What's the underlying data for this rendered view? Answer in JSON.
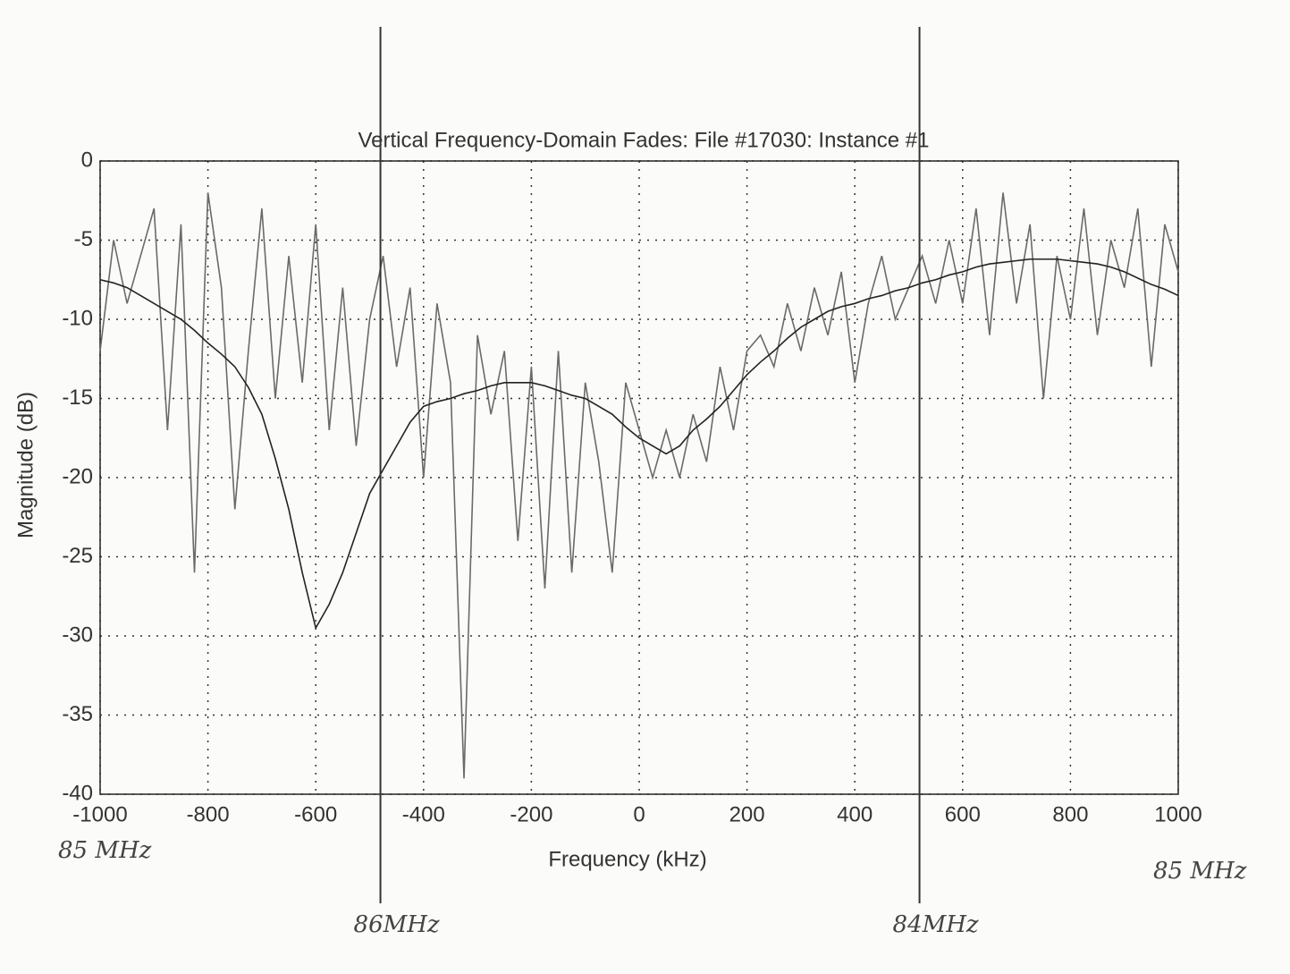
{
  "chart_data": {
    "type": "line",
    "title": "Vertical Frequency-Domain Fades:  File #17030:  Instance #1",
    "xlabel": "Frequency (kHz)",
    "ylabel": "Magnitude (dB)",
    "x": [
      -1000,
      -975,
      -950,
      -925,
      -900,
      -875,
      -850,
      -825,
      -800,
      -775,
      -750,
      -725,
      -700,
      -675,
      -650,
      -625,
      -600,
      -575,
      -550,
      -525,
      -500,
      -475,
      -450,
      -425,
      -400,
      -375,
      -350,
      -325,
      -300,
      -275,
      -250,
      -225,
      -200,
      -175,
      -150,
      -125,
      -100,
      -75,
      -50,
      -25,
      0,
      25,
      50,
      75,
      100,
      125,
      150,
      175,
      200,
      225,
      250,
      275,
      300,
      325,
      350,
      375,
      400,
      425,
      450,
      475,
      500,
      525,
      550,
      575,
      600,
      625,
      650,
      675,
      700,
      725,
      750,
      775,
      800,
      825,
      850,
      875,
      900,
      925,
      950,
      975,
      1000
    ],
    "series": [
      {
        "color": "#6a6a6a",
        "values": [
          -12,
          -5,
          -9,
          -6,
          -3,
          -17,
          -4,
          -26,
          -2,
          -8,
          -22,
          -12,
          -3,
          -15,
          -6,
          -14,
          -4,
          -17,
          -8,
          -18,
          -10,
          -6,
          -13,
          -8,
          -20,
          -9,
          -14,
          -39,
          -11,
          -16,
          -12,
          -24,
          -13,
          -27,
          -12,
          -26,
          -14,
          -19,
          -26,
          -14,
          -17,
          -20,
          -17,
          -20,
          -16,
          -19,
          -13,
          -17,
          -12,
          -11,
          -13,
          -9,
          -12,
          -8,
          -11,
          -7,
          -14,
          -9,
          -6,
          -10,
          -8,
          -6,
          -9,
          -5,
          -9,
          -3,
          -11,
          -2,
          -9,
          -4,
          -15,
          -6,
          -10,
          -3,
          -11,
          -5,
          -8,
          -3,
          -13,
          -4,
          -7
        ]
      },
      {
        "color": "#222222",
        "values": [
          -7.5,
          -7.7,
          -8,
          -8.5,
          -9,
          -9.5,
          -10,
          -10.7,
          -11.5,
          -12.2,
          -13,
          -14.3,
          -16,
          -18.8,
          -22,
          -26,
          -29.5,
          -28,
          -26,
          -23.5,
          -21,
          -19.5,
          -18,
          -16.5,
          -15.5,
          -15.2,
          -15,
          -14.7,
          -14.5,
          -14.2,
          -14,
          -14,
          -14,
          -14.2,
          -14.5,
          -14.8,
          -15,
          -15.5,
          -16,
          -16.8,
          -17.5,
          -18,
          -18.5,
          -18,
          -17,
          -16.3,
          -15.5,
          -14.5,
          -13.5,
          -12.7,
          -12,
          -11.2,
          -10.5,
          -10,
          -9.5,
          -9.2,
          -9,
          -8.7,
          -8.5,
          -8.2,
          -8,
          -7.7,
          -7.5,
          -7.2,
          -7,
          -6.7,
          -6.5,
          -6.4,
          -6.3,
          -6.2,
          -6.2,
          -6.2,
          -6.3,
          -6.4,
          -6.5,
          -6.7,
          -7,
          -7.4,
          -7.8,
          -8.1,
          -8.5
        ]
      }
    ],
    "xlim": [
      -1000,
      1000
    ],
    "ylim": [
      -40,
      0
    ],
    "xticks": [
      -1000,
      -800,
      -600,
      -400,
      -200,
      0,
      200,
      400,
      600,
      800,
      1000
    ],
    "yticks": [
      0,
      -5,
      -10,
      -15,
      -20,
      -25,
      -30,
      -35,
      -40
    ],
    "grid": true,
    "left_note": "85 MHz",
    "right_note": "85 MHz",
    "annotations": [
      {
        "text": "86MHz",
        "x": -480
      },
      {
        "text": "84MHz",
        "x": 520
      }
    ]
  }
}
